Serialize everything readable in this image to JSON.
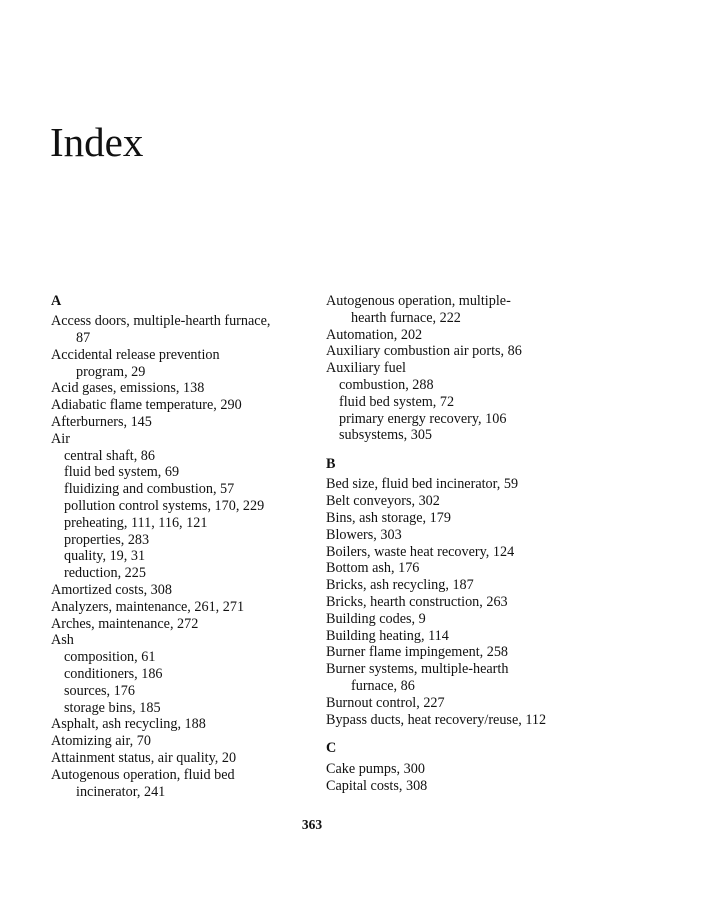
{
  "title": "Index",
  "page_number": "363",
  "columns": [
    [
      {
        "type": "heading",
        "lines": [
          "A"
        ]
      },
      {
        "type": "main",
        "lines": [
          "Access doors, multiple-hearth furnace,",
          "87"
        ]
      },
      {
        "type": "main",
        "lines": [
          "Accidental release prevention",
          "program, 29"
        ]
      },
      {
        "type": "main",
        "lines": [
          "Acid gases, emissions, 138"
        ]
      },
      {
        "type": "main",
        "lines": [
          "Adiabatic flame temperature, 290"
        ]
      },
      {
        "type": "main",
        "lines": [
          "Afterburners, 145"
        ]
      },
      {
        "type": "main",
        "lines": [
          "Air"
        ]
      },
      {
        "type": "sub",
        "lines": [
          "central shaft, 86"
        ]
      },
      {
        "type": "sub",
        "lines": [
          "fluid bed system, 69"
        ]
      },
      {
        "type": "sub",
        "lines": [
          "fluidizing and combustion, 57"
        ]
      },
      {
        "type": "sub",
        "lines": [
          "pollution control systems, 170, 229"
        ]
      },
      {
        "type": "sub",
        "lines": [
          "preheating, 111, 116, 121"
        ]
      },
      {
        "type": "sub",
        "lines": [
          "properties, 283"
        ]
      },
      {
        "type": "sub",
        "lines": [
          "quality, 19, 31"
        ]
      },
      {
        "type": "sub",
        "lines": [
          "reduction, 225"
        ]
      },
      {
        "type": "main",
        "lines": [
          "Amortized costs, 308"
        ]
      },
      {
        "type": "main",
        "lines": [
          "Analyzers, maintenance, 261, 271"
        ]
      },
      {
        "type": "main",
        "lines": [
          "Arches, maintenance, 272"
        ]
      },
      {
        "type": "main",
        "lines": [
          "Ash"
        ]
      },
      {
        "type": "sub",
        "lines": [
          "composition, 61"
        ]
      },
      {
        "type": "sub",
        "lines": [
          "conditioners, 186"
        ]
      },
      {
        "type": "sub",
        "lines": [
          "sources, 176"
        ]
      },
      {
        "type": "sub",
        "lines": [
          "storage bins, 185"
        ]
      },
      {
        "type": "main",
        "lines": [
          "Asphalt, ash recycling, 188"
        ]
      },
      {
        "type": "main",
        "lines": [
          "Atomizing air, 70"
        ]
      },
      {
        "type": "main",
        "lines": [
          "Attainment status, air quality, 20"
        ]
      },
      {
        "type": "main",
        "lines": [
          "Autogenous operation, fluid bed",
          "incinerator, 241"
        ]
      }
    ],
    [
      {
        "type": "main",
        "lines": [
          "Autogenous operation, multiple-",
          "hearth furnace, 222"
        ]
      },
      {
        "type": "main",
        "lines": [
          "Automation, 202"
        ]
      },
      {
        "type": "main",
        "lines": [
          "Auxiliary combustion air ports, 86"
        ]
      },
      {
        "type": "main",
        "lines": [
          "Auxiliary fuel"
        ]
      },
      {
        "type": "sub",
        "lines": [
          "combustion, 288"
        ]
      },
      {
        "type": "sub",
        "lines": [
          "fluid bed system, 72"
        ]
      },
      {
        "type": "sub",
        "lines": [
          "primary energy recovery, 106"
        ]
      },
      {
        "type": "sub",
        "lines": [
          "subsystems, 305"
        ]
      },
      {
        "type": "heading",
        "lines": [
          "B"
        ]
      },
      {
        "type": "main",
        "lines": [
          "Bed size, fluid bed incinerator, 59"
        ]
      },
      {
        "type": "main",
        "lines": [
          "Belt conveyors, 302"
        ]
      },
      {
        "type": "main",
        "lines": [
          "Bins, ash storage, 179"
        ]
      },
      {
        "type": "main",
        "lines": [
          "Blowers, 303"
        ]
      },
      {
        "type": "main",
        "lines": [
          "Boilers, waste heat recovery, 124"
        ]
      },
      {
        "type": "main",
        "lines": [
          "Bottom ash, 176"
        ]
      },
      {
        "type": "main",
        "lines": [
          "Bricks, ash recycling, 187"
        ]
      },
      {
        "type": "main",
        "lines": [
          "Bricks, hearth construction, 263"
        ]
      },
      {
        "type": "main",
        "lines": [
          "Building codes, 9"
        ]
      },
      {
        "type": "main",
        "lines": [
          "Building heating, 114"
        ]
      },
      {
        "type": "main",
        "lines": [
          "Burner flame impingement, 258"
        ]
      },
      {
        "type": "main",
        "lines": [
          "Burner systems, multiple-hearth",
          "furnace, 86"
        ]
      },
      {
        "type": "main",
        "lines": [
          "Burnout control, 227"
        ]
      },
      {
        "type": "main",
        "lines": [
          "Bypass ducts, heat recovery/reuse, 112"
        ]
      },
      {
        "type": "heading",
        "lines": [
          "C"
        ]
      },
      {
        "type": "main",
        "lines": [
          "Cake pumps, 300"
        ]
      },
      {
        "type": "main",
        "lines": [
          "Capital costs, 308"
        ]
      }
    ]
  ]
}
